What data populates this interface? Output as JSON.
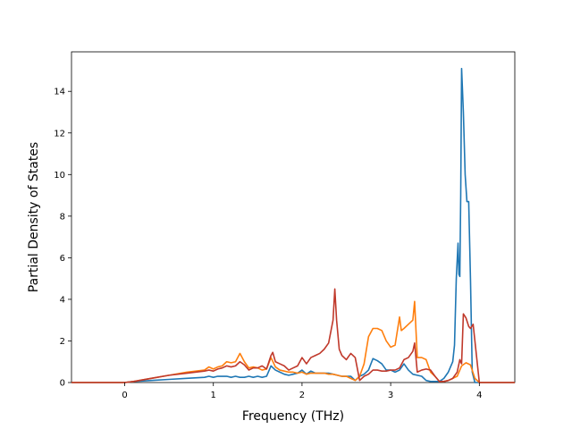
{
  "chart_data": {
    "type": "line",
    "title": "",
    "xlabel": "Frequency (THz)",
    "ylabel": "Partial Density of States",
    "xlim": [
      -0.6,
      4.4
    ],
    "ylim": [
      0,
      15.9
    ],
    "xticks": [
      0,
      1,
      2,
      3,
      4
    ],
    "yticks": [
      0,
      2,
      4,
      6,
      8,
      10,
      12,
      14
    ],
    "grid": false,
    "legend": "none",
    "series": [
      {
        "color": "#1f77b4",
        "x": [
          -0.6,
          0.0,
          0.1,
          0.3,
          0.5,
          0.7,
          0.9,
          0.95,
          1.0,
          1.05,
          1.1,
          1.15,
          1.2,
          1.25,
          1.3,
          1.35,
          1.4,
          1.45,
          1.5,
          1.55,
          1.6,
          1.65,
          1.7,
          1.75,
          1.8,
          1.85,
          1.9,
          1.95,
          2.0,
          2.05,
          2.1,
          2.15,
          2.2,
          2.25,
          2.3,
          2.35,
          2.4,
          2.45,
          2.5,
          2.55,
          2.6,
          2.65,
          2.7,
          2.75,
          2.8,
          2.85,
          2.9,
          2.95,
          3.0,
          3.05,
          3.1,
          3.15,
          3.2,
          3.25,
          3.3,
          3.35,
          3.4,
          3.45,
          3.5,
          3.55,
          3.6,
          3.65,
          3.7,
          3.72,
          3.74,
          3.76,
          3.77,
          3.78,
          3.79,
          3.8,
          3.82,
          3.84,
          3.86,
          3.88,
          3.9,
          3.92,
          3.95,
          4.0,
          4.4
        ],
        "values": [
          0,
          0,
          0.05,
          0.1,
          0.15,
          0.2,
          0.25,
          0.3,
          0.25,
          0.3,
          0.3,
          0.3,
          0.25,
          0.3,
          0.25,
          0.25,
          0.3,
          0.25,
          0.3,
          0.25,
          0.3,
          0.8,
          0.6,
          0.5,
          0.4,
          0.35,
          0.4,
          0.45,
          0.6,
          0.4,
          0.55,
          0.45,
          0.45,
          0.45,
          0.45,
          0.4,
          0.35,
          0.3,
          0.3,
          0.3,
          0.1,
          0.3,
          0.4,
          0.6,
          1.15,
          1.05,
          0.9,
          0.6,
          0.6,
          0.5,
          0.6,
          0.9,
          0.6,
          0.4,
          0.35,
          0.3,
          0.1,
          0.05,
          0.05,
          0.05,
          0.2,
          0.5,
          1.0,
          1.8,
          5.0,
          6.7,
          5.2,
          5.1,
          9.0,
          15.1,
          13.0,
          10.0,
          8.7,
          8.7,
          5.0,
          0.5,
          0,
          0,
          0
        ]
      },
      {
        "color": "#ff7f0e",
        "x": [
          -0.6,
          0.0,
          0.1,
          0.3,
          0.5,
          0.7,
          0.9,
          0.95,
          1.0,
          1.05,
          1.1,
          1.15,
          1.2,
          1.25,
          1.3,
          1.35,
          1.4,
          1.45,
          1.5,
          1.55,
          1.6,
          1.65,
          1.7,
          1.75,
          1.8,
          1.85,
          1.9,
          1.95,
          2.0,
          2.05,
          2.1,
          2.15,
          2.2,
          2.25,
          2.3,
          2.35,
          2.4,
          2.45,
          2.5,
          2.55,
          2.6,
          2.65,
          2.7,
          2.75,
          2.8,
          2.85,
          2.9,
          2.95,
          3.0,
          3.05,
          3.1,
          3.12,
          3.15,
          3.2,
          3.25,
          3.27,
          3.3,
          3.35,
          3.4,
          3.45,
          3.5,
          3.55,
          3.6,
          3.65,
          3.7,
          3.75,
          3.8,
          3.85,
          3.9,
          3.95,
          4.0,
          4.4
        ],
        "values": [
          0,
          0,
          0.05,
          0.2,
          0.35,
          0.5,
          0.6,
          0.75,
          0.65,
          0.75,
          0.8,
          1.0,
          0.95,
          1.0,
          1.4,
          1.0,
          0.7,
          0.75,
          0.7,
          0.6,
          0.65,
          1.2,
          0.75,
          0.6,
          0.55,
          0.5,
          0.5,
          0.45,
          0.5,
          0.4,
          0.45,
          0.45,
          0.45,
          0.45,
          0.4,
          0.4,
          0.35,
          0.3,
          0.3,
          0.2,
          0.1,
          0.3,
          0.9,
          2.2,
          2.6,
          2.6,
          2.5,
          2.0,
          1.7,
          1.8,
          3.15,
          2.5,
          2.6,
          2.8,
          3.0,
          3.9,
          1.2,
          1.2,
          1.1,
          0.5,
          0.3,
          0.05,
          0.05,
          0.1,
          0.2,
          0.3,
          0.8,
          0.95,
          0.85,
          0.2,
          0,
          0
        ]
      },
      {
        "color": "#c0392b",
        "x": [
          -0.6,
          0.0,
          0.1,
          0.3,
          0.5,
          0.7,
          0.9,
          0.95,
          1.0,
          1.05,
          1.1,
          1.15,
          1.2,
          1.25,
          1.3,
          1.35,
          1.4,
          1.45,
          1.5,
          1.55,
          1.6,
          1.65,
          1.67,
          1.7,
          1.75,
          1.8,
          1.85,
          1.9,
          1.95,
          2.0,
          2.05,
          2.1,
          2.15,
          2.2,
          2.25,
          2.3,
          2.35,
          2.37,
          2.39,
          2.42,
          2.45,
          2.5,
          2.55,
          2.6,
          2.65,
          2.7,
          2.75,
          2.8,
          2.85,
          2.9,
          2.95,
          3.0,
          3.05,
          3.1,
          3.15,
          3.2,
          3.25,
          3.27,
          3.3,
          3.35,
          3.4,
          3.45,
          3.5,
          3.55,
          3.6,
          3.65,
          3.7,
          3.75,
          3.78,
          3.8,
          3.82,
          3.85,
          3.88,
          3.9,
          3.93,
          4.0,
          4.4
        ],
        "values": [
          0,
          0,
          0.05,
          0.2,
          0.35,
          0.45,
          0.55,
          0.6,
          0.55,
          0.65,
          0.7,
          0.8,
          0.75,
          0.8,
          1.0,
          0.85,
          0.6,
          0.7,
          0.7,
          0.8,
          0.65,
          1.3,
          1.45,
          1.0,
          0.9,
          0.8,
          0.6,
          0.7,
          0.8,
          1.2,
          0.9,
          1.2,
          1.3,
          1.4,
          1.6,
          1.9,
          3.0,
          4.5,
          3.0,
          1.6,
          1.3,
          1.1,
          1.4,
          1.2,
          0.1,
          0.3,
          0.4,
          0.6,
          0.6,
          0.55,
          0.55,
          0.6,
          0.6,
          0.7,
          1.1,
          1.2,
          1.5,
          1.9,
          0.5,
          0.6,
          0.65,
          0.6,
          0.3,
          0.05,
          0.05,
          0.1,
          0.2,
          0.5,
          1.1,
          0.9,
          3.3,
          3.1,
          2.7,
          2.6,
          2.8,
          0,
          0
        ]
      }
    ]
  }
}
